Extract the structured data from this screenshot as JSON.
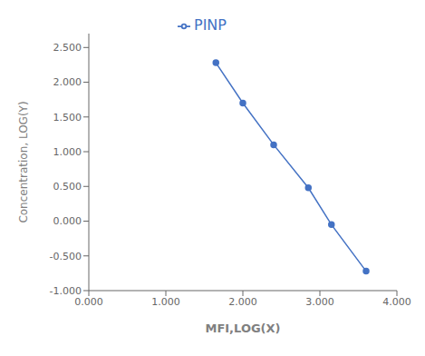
{
  "chart_data": {
    "type": "line",
    "xlabel": "MFI,LOG(X)",
    "ylabel": "Concentration, LOG(Y)",
    "x": [
      1.65,
      2.0,
      2.4,
      2.85,
      3.15,
      3.6
    ],
    "series": [
      {
        "name": "PINP",
        "color": "#4472c4",
        "marker": "circle",
        "values": [
          2.28,
          1.7,
          1.1,
          0.48,
          -0.05,
          -0.72
        ]
      }
    ],
    "xlim": [
      0.0,
      4.0
    ],
    "ylim": [
      -1.0,
      2.7
    ],
    "xticks": [
      {
        "value": 0.0,
        "label": "0.000"
      },
      {
        "value": 1.0,
        "label": "1.000"
      },
      {
        "value": 2.0,
        "label": "2.000"
      },
      {
        "value": 3.0,
        "label": "3.000"
      },
      {
        "value": 4.0,
        "label": "4.000"
      }
    ],
    "yticks": [
      {
        "value": -1.0,
        "label": "-1.000"
      },
      {
        "value": -0.5,
        "label": "-0.500"
      },
      {
        "value": 0.0,
        "label": "0.000"
      },
      {
        "value": 0.5,
        "label": "0.500"
      },
      {
        "value": 1.0,
        "label": "1.000"
      },
      {
        "value": 1.5,
        "label": "1.500"
      },
      {
        "value": 2.0,
        "label": "2.000"
      },
      {
        "value": 2.5,
        "label": "2.500"
      }
    ],
    "legend": "top"
  }
}
